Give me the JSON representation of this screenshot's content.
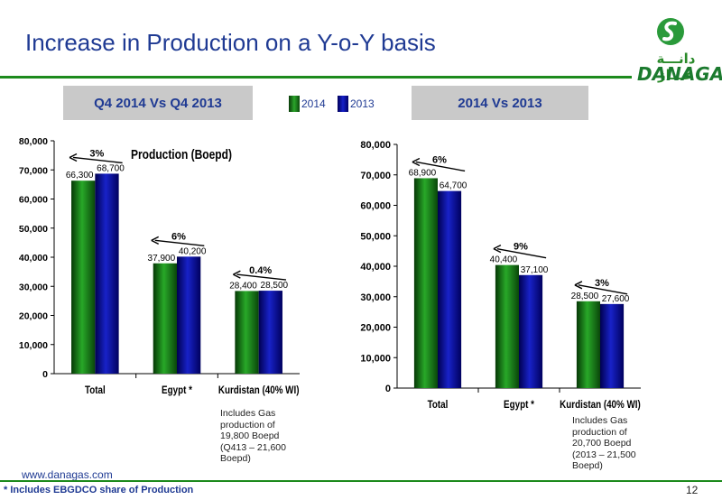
{
  "slide": {
    "title": "Increase in Production on a Y-o-Y basis",
    "logo_arabic": "دانـــة غـــاز",
    "logo_text": "DANAGAS",
    "banner_left": "Q4 2014 Vs Q4 2013",
    "banner_right": "2014 Vs 2013",
    "legend": [
      {
        "label": "2014",
        "color": "#1a8f1a"
      },
      {
        "label": "2013",
        "color": "#0d0d9a"
      }
    ],
    "note_left": "Includes Gas production of 19,800 Boepd (Q413 – 21,600 Boepd)",
    "note_right": "Includes Gas production of 20,700 Boepd (2013 – 21,500 Boepd)",
    "website": "www.danagas.com",
    "footnote": "* Includes EBGDCO share of Production",
    "page_number": "12"
  },
  "chart_data": [
    {
      "type": "bar",
      "title": "Production (Boepd)",
      "categories": [
        "Total",
        "Egypt *",
        "Kurdistan (40% WI)"
      ],
      "series": [
        {
          "name": "2014",
          "values": [
            66300,
            37900,
            28400
          ],
          "labels": [
            "66,300",
            "37,900",
            "28,400"
          ]
        },
        {
          "name": "2013",
          "values": [
            68700,
            40200,
            28500
          ],
          "labels": [
            "68,700",
            "40,200",
            "28,500"
          ]
        }
      ],
      "ylim": [
        0,
        80000
      ],
      "yticks": [
        0,
        10000,
        20000,
        30000,
        40000,
        50000,
        60000,
        70000,
        80000
      ],
      "ytick_labels": [
        "0",
        "10,000",
        "20,000",
        "30,000",
        "40,000",
        "50,000",
        "60,000",
        "70,000",
        "80,000"
      ],
      "change_annotations": [
        "3%",
        "6%",
        "0.4%"
      ]
    },
    {
      "type": "bar",
      "title": "",
      "categories": [
        "Total",
        "Egypt *",
        "Kurdistan (40% WI)"
      ],
      "series": [
        {
          "name": "2014",
          "values": [
            68900,
            40400,
            28500
          ],
          "labels": [
            "68,900",
            "40,400",
            "28,500"
          ]
        },
        {
          "name": "2013",
          "values": [
            64700,
            37100,
            27600
          ],
          "labels": [
            "64,700",
            "37,100",
            "27,600"
          ]
        }
      ],
      "ylim": [
        0,
        80000
      ],
      "yticks": [
        0,
        10000,
        20000,
        30000,
        40000,
        50000,
        60000,
        70000,
        80000
      ],
      "ytick_labels": [
        "0",
        "10,000",
        "20,000",
        "30,000",
        "40,000",
        "50,000",
        "60,000",
        "70,000",
        "80,000"
      ],
      "change_annotations": [
        "6%",
        "9%",
        "3%"
      ]
    }
  ]
}
